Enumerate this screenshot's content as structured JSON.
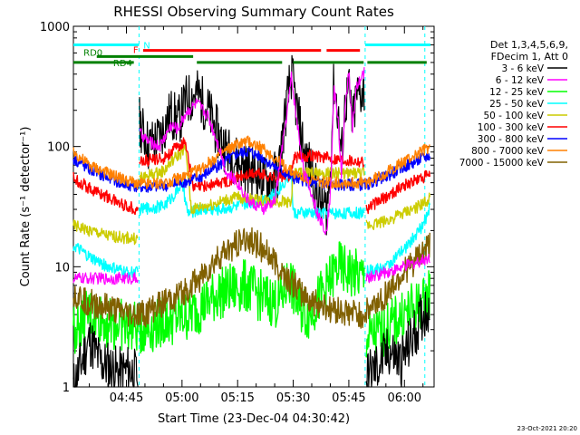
{
  "chart_data": {
    "type": "line",
    "title": "RHESSI Observing Summary Count Rates",
    "xlabel": "Start Time (23-Dec-04 04:30:42)",
    "ylabel": "Count Rate (s⁻¹ detector⁻¹)",
    "y_scale": "log",
    "ylim": [
      1,
      1000
    ],
    "xlim_minutes_after_0430": [
      0.7,
      98
    ],
    "x_ticks": [
      {
        "min": 15,
        "label": "04:45"
      },
      {
        "min": 30,
        "label": "05:00"
      },
      {
        "min": 45,
        "label": "05:15"
      },
      {
        "min": 60,
        "label": "05:30"
      },
      {
        "min": 75,
        "label": "05:45"
      },
      {
        "min": 90,
        "label": "06:00"
      }
    ],
    "y_ticks": [
      {
        "value": 1,
        "label": "1"
      },
      {
        "value": 10,
        "label": "10"
      },
      {
        "value": 100,
        "label": "100"
      },
      {
        "value": 1000,
        "label": "1000"
      }
    ],
    "legend_header": [
      "Det 1,3,4,5,6,9,",
      "FDecim 1, Att 0"
    ],
    "footer_date": "23-Oct-2021 20:20",
    "night_boundaries_min": [
      18.4,
      79.4,
      95.5
    ],
    "flags": {
      "labels": [
        "N",
        "F",
        "RD0",
        "RD4"
      ],
      "N": {
        "value": 700,
        "segments": [
          [
            0.7,
            18.4
          ],
          [
            79.4,
            97
          ]
        ]
      },
      "F": {
        "value": 630,
        "segments": [
          [
            19.5,
            67.5
          ],
          [
            69,
            78
          ]
        ]
      },
      "RD0": {
        "value": 560,
        "segments": [
          [
            7,
            33
          ]
        ]
      },
      "RD4": {
        "value": 500,
        "segments": [
          [
            0.7,
            17
          ],
          [
            34,
            57
          ],
          [
            60,
            79
          ],
          [
            80,
            96
          ]
        ]
      }
    },
    "series": [
      {
        "name": "3 - 6 keV",
        "color": "#000000",
        "gaps": [
          [
            18.2,
            18.5
          ],
          [
            79.2,
            79.5
          ]
        ],
        "points": [
          [
            0.7,
            1
          ],
          [
            5,
            2.5
          ],
          [
            8,
            1.6
          ],
          [
            10,
            1.5
          ],
          [
            13,
            1.3
          ],
          [
            16,
            1.4
          ],
          [
            18.2,
            1.2
          ],
          [
            18.5,
            160
          ],
          [
            21,
            100
          ],
          [
            24,
            120
          ],
          [
            27,
            190
          ],
          [
            29,
            160
          ],
          [
            31,
            240
          ],
          [
            34,
            280
          ],
          [
            37,
            200
          ],
          [
            40,
            120
          ],
          [
            43,
            85
          ],
          [
            46,
            70
          ],
          [
            50,
            60
          ],
          [
            53,
            50
          ],
          [
            56,
            60
          ],
          [
            58,
            200
          ],
          [
            59.5,
            400
          ],
          [
            61,
            200
          ],
          [
            63,
            90
          ],
          [
            65,
            60
          ],
          [
            67,
            35
          ],
          [
            69,
            30
          ],
          [
            70,
            60
          ],
          [
            71,
            350
          ],
          [
            72,
            200
          ],
          [
            73,
            80
          ],
          [
            74,
            220
          ],
          [
            75,
            300
          ],
          [
            76,
            150
          ],
          [
            77,
            260
          ],
          [
            79.2,
            300
          ],
          [
            79.5,
            1.2
          ],
          [
            83,
            1.5
          ],
          [
            86,
            2
          ],
          [
            89,
            1.6
          ],
          [
            92,
            2.5
          ],
          [
            95,
            4
          ],
          [
            97,
            5
          ]
        ]
      },
      {
        "name": "6 - 12 keV",
        "color": "#ff00ff",
        "gaps": [
          [
            18.2,
            18.5
          ],
          [
            79.2,
            79.5
          ]
        ],
        "points": [
          [
            0.7,
            8
          ],
          [
            18.2,
            8
          ],
          [
            18.5,
            130
          ],
          [
            21,
            110
          ],
          [
            24,
            100
          ],
          [
            27,
            150
          ],
          [
            29,
            140
          ],
          [
            31,
            190
          ],
          [
            34,
            230
          ],
          [
            37,
            180
          ],
          [
            40,
            100
          ],
          [
            42,
            60
          ],
          [
            45,
            50
          ],
          [
            48,
            35
          ],
          [
            52,
            30
          ],
          [
            55,
            35
          ],
          [
            58,
            160
          ],
          [
            59.5,
            380
          ],
          [
            61,
            160
          ],
          [
            63,
            60
          ],
          [
            65,
            40
          ],
          [
            67,
            25
          ],
          [
            69,
            20
          ],
          [
            70,
            40
          ],
          [
            71,
            300
          ],
          [
            72,
            180
          ],
          [
            73,
            60
          ],
          [
            74,
            200
          ],
          [
            75,
            450
          ],
          [
            76,
            140
          ],
          [
            77,
            300
          ],
          [
            79.2,
            420
          ],
          [
            79.5,
            8
          ],
          [
            85,
            9
          ],
          [
            90,
            10
          ],
          [
            97,
            12
          ]
        ]
      },
      {
        "name": "12 - 25 keV",
        "color": "#00ff00",
        "gaps": [
          [
            18.2,
            18.5
          ],
          [
            79.2,
            79.5
          ]
        ],
        "points": [
          [
            0.7,
            3
          ],
          [
            5,
            4
          ],
          [
            10,
            3.5
          ],
          [
            15,
            3.2
          ],
          [
            18.2,
            3
          ],
          [
            18.5,
            3
          ],
          [
            25,
            3.5
          ],
          [
            32,
            4
          ],
          [
            40,
            6
          ],
          [
            47,
            7
          ],
          [
            52,
            5.5
          ],
          [
            56,
            5
          ],
          [
            59,
            8
          ],
          [
            61,
            5
          ],
          [
            64,
            4
          ],
          [
            68,
            6
          ],
          [
            72,
            10
          ],
          [
            75,
            9
          ],
          [
            79.2,
            8
          ],
          [
            79.5,
            2.5
          ],
          [
            85,
            3
          ],
          [
            90,
            4
          ],
          [
            95,
            5
          ],
          [
            97,
            6
          ]
        ]
      },
      {
        "name": "25 - 50 keV",
        "color": "#00ffff",
        "gaps": [
          [
            18.2,
            18.5
          ],
          [
            79.2,
            79.5
          ]
        ],
        "points": [
          [
            0.7,
            15
          ],
          [
            5,
            12
          ],
          [
            10,
            10
          ],
          [
            15,
            9
          ],
          [
            18.2,
            9
          ],
          [
            18.5,
            30
          ],
          [
            25,
            32
          ],
          [
            28,
            40
          ],
          [
            30,
            50
          ],
          [
            31.5,
            28
          ],
          [
            35,
            30
          ],
          [
            40,
            30
          ],
          [
            45,
            32
          ],
          [
            50,
            35
          ],
          [
            55,
            40
          ],
          [
            59.5,
            60
          ],
          [
            60,
            28
          ],
          [
            65,
            28
          ],
          [
            70,
            28
          ],
          [
            79.2,
            28
          ],
          [
            79.5,
            9
          ],
          [
            85,
            10
          ],
          [
            90,
            14
          ],
          [
            95,
            22
          ],
          [
            97,
            32
          ]
        ]
      },
      {
        "name": "50 - 100 keV",
        "color": "#cccc00",
        "gaps": [
          [
            18.2,
            18.5
          ],
          [
            79.2,
            79.5
          ]
        ],
        "points": [
          [
            0.7,
            22
          ],
          [
            10,
            18
          ],
          [
            18.2,
            17
          ],
          [
            18.5,
            55
          ],
          [
            25,
            62
          ],
          [
            28,
            80
          ],
          [
            31,
            95
          ],
          [
            32.5,
            30
          ],
          [
            38,
            33
          ],
          [
            45,
            38
          ],
          [
            50,
            36
          ],
          [
            55,
            35
          ],
          [
            59.5,
            35
          ],
          [
            60,
            60
          ],
          [
            65,
            60
          ],
          [
            70,
            60
          ],
          [
            79.2,
            60
          ],
          [
            79.5,
            22
          ],
          [
            85,
            24
          ],
          [
            90,
            28
          ],
          [
            95,
            33
          ],
          [
            97,
            38
          ]
        ]
      },
      {
        "name": "100 - 300 keV",
        "color": "#ff0000",
        "gaps": [
          [
            18.2,
            18.5
          ],
          [
            79.2,
            79.5
          ]
        ],
        "points": [
          [
            0.7,
            55
          ],
          [
            5,
            45
          ],
          [
            10,
            38
          ],
          [
            15,
            32
          ],
          [
            18.2,
            30
          ],
          [
            18.5,
            75
          ],
          [
            25,
            80
          ],
          [
            28,
            95
          ],
          [
            31,
            110
          ],
          [
            33,
            45
          ],
          [
            38,
            48
          ],
          [
            45,
            55
          ],
          [
            50,
            60
          ],
          [
            55,
            55
          ],
          [
            59.5,
            58
          ],
          [
            60,
            80
          ],
          [
            65,
            85
          ],
          [
            70,
            80
          ],
          [
            79.2,
            75
          ],
          [
            79.5,
            30
          ],
          [
            85,
            38
          ],
          [
            90,
            48
          ],
          [
            95,
            55
          ],
          [
            97,
            58
          ]
        ]
      },
      {
        "name": "300 - 800 keV",
        "color": "#0000ff",
        "gaps": [],
        "points": [
          [
            0.7,
            80
          ],
          [
            5,
            65
          ],
          [
            10,
            55
          ],
          [
            15,
            48
          ],
          [
            20,
            46
          ],
          [
            25,
            47
          ],
          [
            30,
            50
          ],
          [
            35,
            56
          ],
          [
            40,
            70
          ],
          [
            45,
            88
          ],
          [
            48,
            92
          ],
          [
            52,
            80
          ],
          [
            56,
            65
          ],
          [
            60,
            55
          ],
          [
            65,
            50
          ],
          [
            70,
            48
          ],
          [
            75,
            48
          ],
          [
            79,
            48
          ],
          [
            81,
            50
          ],
          [
            85,
            56
          ],
          [
            90,
            68
          ],
          [
            95,
            80
          ],
          [
            97,
            85
          ]
        ]
      },
      {
        "name": "800 - 7000 keV",
        "color": "#ff8000",
        "gaps": [],
        "points": [
          [
            0.7,
            90
          ],
          [
            5,
            70
          ],
          [
            10,
            60
          ],
          [
            15,
            52
          ],
          [
            20,
            48
          ],
          [
            25,
            50
          ],
          [
            30,
            55
          ],
          [
            35,
            65
          ],
          [
            40,
            85
          ],
          [
            45,
            105
          ],
          [
            48,
            110
          ],
          [
            52,
            95
          ],
          [
            56,
            75
          ],
          [
            60,
            60
          ],
          [
            65,
            52
          ],
          [
            70,
            50
          ],
          [
            75,
            50
          ],
          [
            79,
            50
          ],
          [
            81,
            52
          ],
          [
            85,
            60
          ],
          [
            90,
            75
          ],
          [
            95,
            92
          ],
          [
            97,
            100
          ]
        ]
      },
      {
        "name": "7000 - 15000 keV",
        "color": "#806000",
        "gaps": [],
        "points": [
          [
            0.7,
            6
          ],
          [
            5,
            5
          ],
          [
            10,
            4.5
          ],
          [
            15,
            4
          ],
          [
            20,
            4
          ],
          [
            25,
            5
          ],
          [
            30,
            6
          ],
          [
            35,
            8
          ],
          [
            40,
            12
          ],
          [
            45,
            16
          ],
          [
            48,
            17
          ],
          [
            52,
            14
          ],
          [
            56,
            10
          ],
          [
            60,
            7
          ],
          [
            65,
            5
          ],
          [
            70,
            4.5
          ],
          [
            75,
            4
          ],
          [
            79,
            4
          ],
          [
            81,
            4.5
          ],
          [
            85,
            6
          ],
          [
            90,
            9
          ],
          [
            95,
            13
          ],
          [
            97,
            15
          ]
        ]
      }
    ]
  }
}
